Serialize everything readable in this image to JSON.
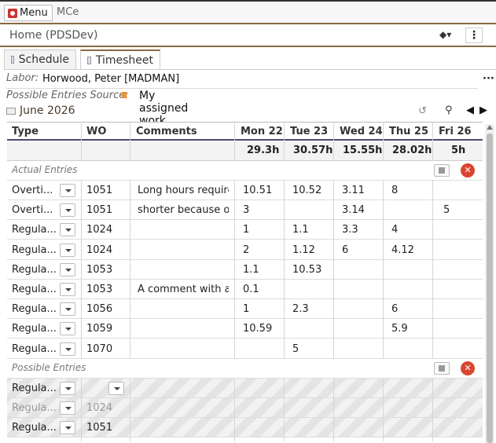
{
  "topbar": {
    "menu_label": "Menu",
    "app_title": "MCe"
  },
  "home": {
    "title": "Home (PDSDev)"
  },
  "tabs": [
    {
      "label": "Schedule",
      "active": false
    },
    {
      "label": "Timesheet",
      "active": true
    }
  ],
  "labor": {
    "label": "Labor:",
    "value": "Horwood, Peter [MADMAN]"
  },
  "source": {
    "label": "Possible Entries Source:",
    "value": "My assigned work"
  },
  "period": {
    "month": "June 2026"
  },
  "columns": {
    "type": "Type",
    "wo": "WO",
    "comments": "Comments",
    "days": [
      "Mon 22",
      "Tue 23",
      "Wed 24",
      "Thu 25",
      "Fri 26"
    ]
  },
  "totals": [
    "29.3h",
    "30.57h",
    "15.55h",
    "28.02h",
    "5h"
  ],
  "sections": {
    "actual": "Actual Entries",
    "possible": "Possible Entries"
  },
  "actual_entries": [
    {
      "type": "Overti...",
      "wo": "1051",
      "comment": "Long hours required",
      "values": [
        "10.51",
        "10.52",
        "3.11",
        "8",
        ""
      ]
    },
    {
      "type": "Overti...",
      "wo": "1051",
      "comment": "shorter because of",
      "values": [
        "3",
        "",
        "3.14",
        "",
        "5"
      ]
    },
    {
      "type": "Regula...",
      "wo": "1024",
      "comment": "",
      "values": [
        "1",
        "1.1",
        "3.3",
        "4",
        ""
      ]
    },
    {
      "type": "Regula...",
      "wo": "1024",
      "comment": "",
      "values": [
        "2",
        "1.12",
        "6",
        "4.12",
        ""
      ]
    },
    {
      "type": "Regula...",
      "wo": "1053",
      "comment": "",
      "values": [
        "1.1",
        "10.53",
        "",
        "",
        ""
      ]
    },
    {
      "type": "Regula...",
      "wo": "1053",
      "comment": "A comment with a r",
      "values": [
        "0.1",
        "",
        "",
        "",
        ""
      ]
    },
    {
      "type": "Regula...",
      "wo": "1056",
      "comment": "",
      "values": [
        "1",
        "2.3",
        "",
        "6",
        ""
      ]
    },
    {
      "type": "Regula...",
      "wo": "1059",
      "comment": "",
      "values": [
        "10.59",
        "",
        "",
        "5.9",
        ""
      ]
    },
    {
      "type": "Regula...",
      "wo": "1070",
      "comment": "",
      "values": [
        "",
        "5",
        "",
        "",
        ""
      ]
    }
  ],
  "possible_entries": [
    {
      "type": "Regula...",
      "wo": "",
      "has_wo_dropdown": true,
      "dim": false
    },
    {
      "type": "Regula...",
      "wo": "1024",
      "has_wo_dropdown": false,
      "dim": true
    },
    {
      "type": "Regula...",
      "wo": "1051",
      "has_wo_dropdown": false,
      "dim": false
    }
  ]
}
